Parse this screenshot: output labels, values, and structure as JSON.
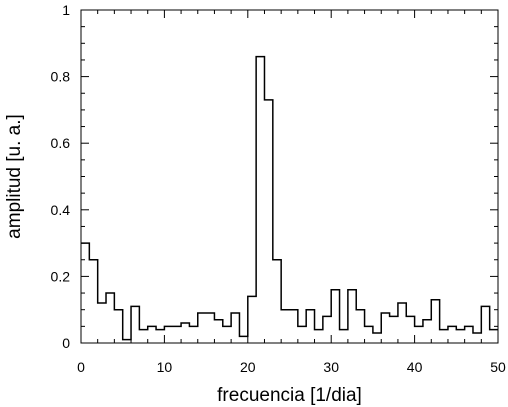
{
  "chart_data": {
    "type": "line",
    "title": "",
    "xlabel": "frecuencia [1/dia]",
    "ylabel": "amplitud [u. a.]",
    "xlim": [
      0,
      50
    ],
    "ylim": [
      0,
      1
    ],
    "x_ticks": [
      0,
      10,
      20,
      30,
      40,
      50
    ],
    "x_tick_labels": [
      "0",
      "10",
      "20",
      "30",
      "40",
      "50"
    ],
    "y_ticks": [
      0,
      0.2,
      0.4,
      0.6,
      0.8,
      1
    ],
    "y_tick_labels": [
      "0",
      "0.2",
      "0.4",
      "0.6",
      "0.8",
      "1"
    ],
    "grid": false,
    "legend": false,
    "step_style": "post",
    "series": [
      {
        "x": [
          0,
          1,
          2,
          3,
          4,
          5,
          6,
          7,
          8,
          9,
          10,
          11,
          12,
          13,
          14,
          15,
          16,
          17,
          18,
          19,
          20,
          21,
          22,
          23,
          24,
          25,
          26,
          27,
          28,
          29,
          30,
          31,
          32,
          33,
          34,
          35,
          36,
          37,
          38,
          39,
          40,
          41,
          42,
          43,
          44,
          45,
          46,
          47,
          48,
          49,
          50
        ],
        "values": [
          0.3,
          0.25,
          0.12,
          0.15,
          0.1,
          0.01,
          0.11,
          0.04,
          0.05,
          0.04,
          0.05,
          0.05,
          0.06,
          0.05,
          0.09,
          0.09,
          0.07,
          0.05,
          0.09,
          0.02,
          0.14,
          0.86,
          0.73,
          0.25,
          0.1,
          0.1,
          0.05,
          0.1,
          0.04,
          0.08,
          0.16,
          0.04,
          0.16,
          0.1,
          0.05,
          0.03,
          0.09,
          0.08,
          0.12,
          0.08,
          0.05,
          0.07,
          0.13,
          0.04,
          0.05,
          0.04,
          0.05,
          0.03,
          0.11,
          0.04,
          0.04
        ]
      }
    ],
    "line_color": "#000000"
  }
}
